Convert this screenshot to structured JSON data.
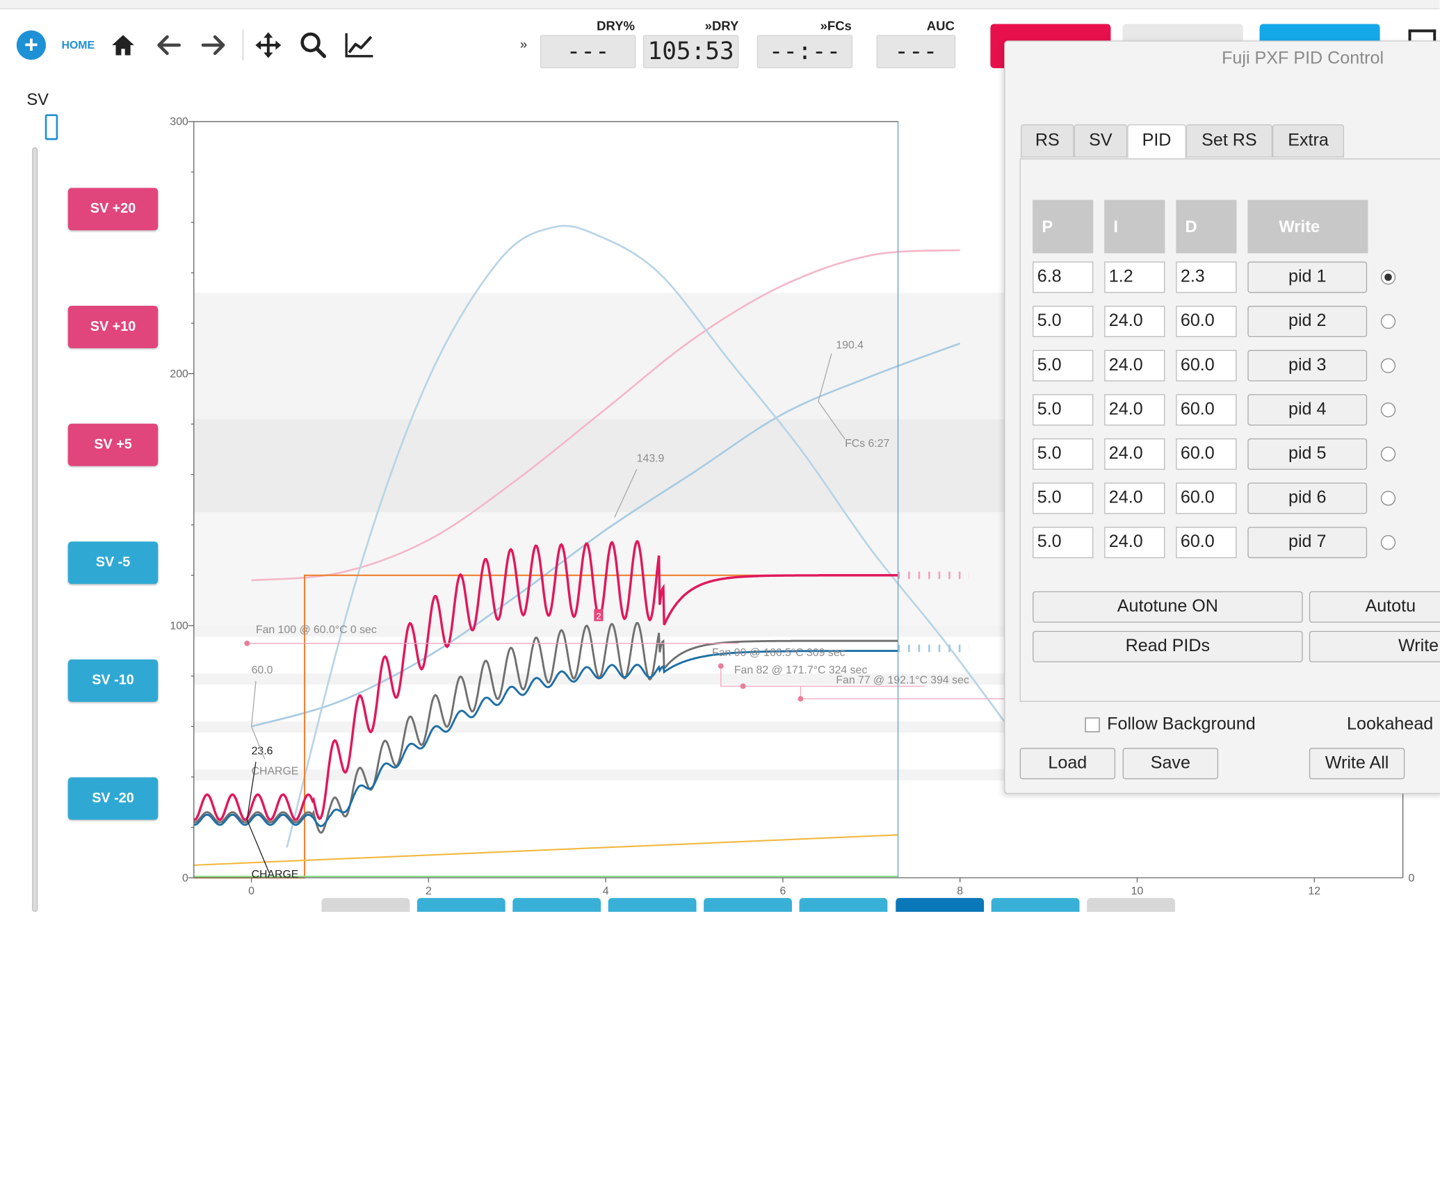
{
  "toolbar": {
    "home_label": "HOME",
    "more_chevron": "»",
    "icons": [
      "plus-icon",
      "home-icon",
      "arrow-left-icon",
      "arrow-right-icon",
      "move-icon",
      "search-icon",
      "chart-icon"
    ]
  },
  "lcds": [
    {
      "label": "DRY%",
      "value": "---"
    },
    {
      "label": "»DRY",
      "value": "105:53"
    },
    {
      "label": "»FCs",
      "value": "--:--"
    },
    {
      "label": "AUC",
      "value": "---"
    }
  ],
  "sv_panel": {
    "label": "SV",
    "buttons": [
      {
        "label": "SV +20",
        "color": "#e0457b"
      },
      {
        "label": "SV +10",
        "color": "#e0457b"
      },
      {
        "label": "SV +5",
        "color": "#e0457b"
      },
      {
        "label": "SV -5",
        "color": "#2fa9d3"
      },
      {
        "label": "SV -10",
        "color": "#2fa9d3"
      },
      {
        "label": "SV -20",
        "color": "#2fa9d3"
      }
    ]
  },
  "chart_data": {
    "type": "line",
    "x_ticks": [
      "0",
      "2",
      "4",
      "6",
      "8",
      "10",
      "12"
    ],
    "y_ticks": [
      "0",
      "100",
      "200",
      "300"
    ],
    "right_y_ticks": [
      "0"
    ],
    "xlim": [
      -0.65,
      13
    ],
    "ylim": [
      0,
      300
    ],
    "annotations": [
      {
        "text": "190.4",
        "x": 6.6,
        "y": 210
      },
      {
        "text": "FCs 6:27",
        "x": 6.7,
        "y": 171
      },
      {
        "text": "143.9",
        "x": 4.35,
        "y": 165
      },
      {
        "text": "60.0",
        "x": 0.0,
        "y": 81
      },
      {
        "text": "23.6",
        "x": 0.0,
        "y": 49
      },
      {
        "text": "CHARGE",
        "x": 0.0,
        "y": 41
      },
      {
        "text": "CHARGE",
        "x": 0.0,
        "y": 0
      },
      {
        "text": "Fan 100 @ 60.0°C 0 sec",
        "x": 0.05,
        "y": 97
      },
      {
        "text": "Fan 90 @ 166.5°C 309 sec",
        "x": 5.2,
        "y": 88
      },
      {
        "text": "Fan 82 @ 171.7°C 324 sec",
        "x": 5.45,
        "y": 81
      },
      {
        "text": "Fan 77 @ 192.1°C 394 sec",
        "x": 6.6,
        "y": 77
      }
    ],
    "markers": [
      {
        "text": "2",
        "x": 3.92,
        "y": 104
      }
    ],
    "series": [
      {
        "role": "et_smooth",
        "color": "#f4b8c8",
        "x": [
          0,
          1,
          2,
          3,
          4,
          5,
          6,
          7,
          8
        ],
        "y": [
          118,
          121,
          134,
          158,
          186,
          214,
          235,
          247,
          249
        ]
      },
      {
        "role": "bt_smooth",
        "color": "#a9cbe2",
        "x": [
          0,
          1,
          2,
          3,
          4,
          5,
          6,
          7,
          8
        ],
        "y": [
          60,
          70,
          88,
          112,
          138,
          161,
          184,
          199,
          212
        ]
      },
      {
        "role": "ror_bell",
        "color": "#b8d4e6",
        "x": [
          0.4,
          1.2,
          2.0,
          2.8,
          3.4,
          3.9,
          4.6,
          5.4,
          6.2,
          7.0,
          7.8,
          8.5
        ],
        "y": [
          12,
          120,
          198,
          245,
          258,
          255,
          240,
          205,
          170,
          130,
          95,
          62
        ]
      },
      {
        "role": "setpoint",
        "color": "#f08030",
        "x": [
          -0.65,
          0.6,
          0.6,
          7.3
        ],
        "y": [
          0,
          0,
          120,
          120
        ]
      },
      {
        "role": "ambient",
        "color": "#f2b840",
        "x": [
          -0.65,
          7.3
        ],
        "y": [
          5,
          17
        ]
      },
      {
        "role": "floor",
        "color": "#88dd88",
        "x": [
          -0.65,
          7.3
        ],
        "y": [
          0.5,
          0.5
        ]
      }
    ]
  },
  "dialog": {
    "title": "Fuji PXF PID Control",
    "tabs": [
      "RS",
      "SV",
      "PID",
      "Set RS",
      "Extra"
    ],
    "active_tab": "PID",
    "columns": [
      "P",
      "I",
      "D",
      "Write"
    ],
    "rows": [
      {
        "p": "6.8",
        "i": "1.2",
        "d": "2.3",
        "button": "pid 1",
        "selected": true
      },
      {
        "p": "5.0",
        "i": "24.0",
        "d": "60.0",
        "button": "pid 2",
        "selected": false
      },
      {
        "p": "5.0",
        "i": "24.0",
        "d": "60.0",
        "button": "pid 3",
        "selected": false
      },
      {
        "p": "5.0",
        "i": "24.0",
        "d": "60.0",
        "button": "pid 4",
        "selected": false
      },
      {
        "p": "5.0",
        "i": "24.0",
        "d": "60.0",
        "button": "pid 5",
        "selected": false
      },
      {
        "p": "5.0",
        "i": "24.0",
        "d": "60.0",
        "button": "pid 6",
        "selected": false
      },
      {
        "p": "5.0",
        "i": "24.0",
        "d": "60.0",
        "button": "pid 7",
        "selected": false
      }
    ],
    "autotune_on": "Autotune ON",
    "autotune_off": "Autotu",
    "read_pids": "Read PIDs",
    "write_partial": "Write",
    "follow_background": "Follow Background",
    "lookahead": "Lookahead",
    "load": "Load",
    "save": "Save",
    "write_all": "Write All"
  }
}
